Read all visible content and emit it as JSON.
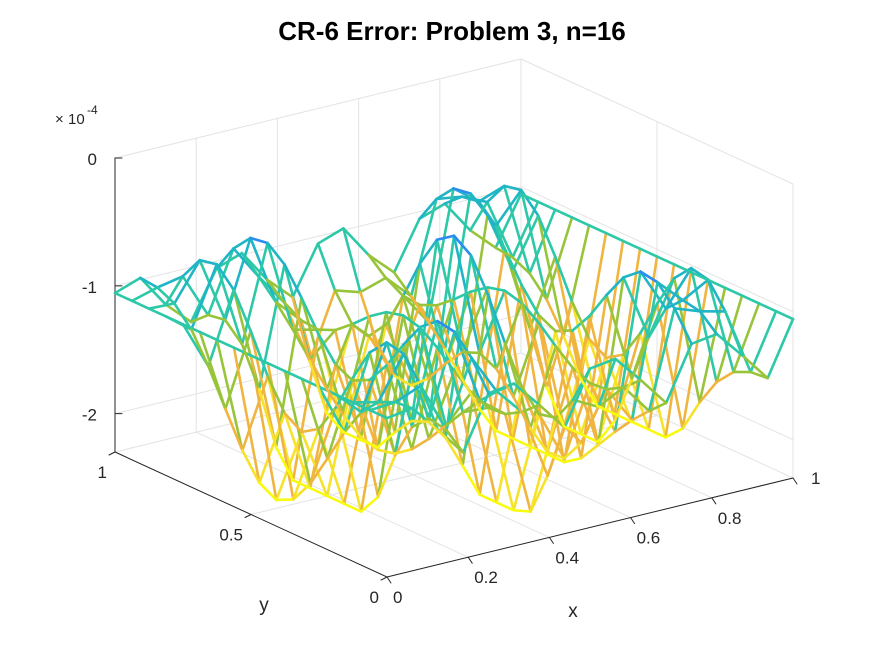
{
  "chart_data": {
    "type": "line",
    "title": "CR-6 Error: Problem 3, n=16",
    "xlabel": "x",
    "ylabel": "y",
    "zlabel": "",
    "z_exponent": {
      "base": "10",
      "power": "-4"
    },
    "x_ticks": [
      "0",
      "0.2",
      "0.4",
      "0.6",
      "0.8",
      "1"
    ],
    "y_ticks": [
      "0",
      "0.5",
      "1"
    ],
    "z_ticks": [
      "0",
      "-1",
      "-2"
    ],
    "xlim": [
      0,
      1
    ],
    "ylim": [
      0,
      1
    ],
    "zlim": [
      -2.3,
      0.0
    ],
    "z_scale": 0.0001,
    "grid": true,
    "colormap": [
      "#3e26a8",
      "#3b58f7",
      "#2c8cf0",
      "#20b5c6",
      "#2cc8a8",
      "#98c43a",
      "#f0b53f",
      "#f7e22a",
      "#f9fb0e"
    ],
    "surface": {
      "n": 16,
      "description_values": "error(x,y) = -1.1e-4 + 0.9e-4*sin(3*pi*x)*sin(3*pi*y) - 1.1e-4*sin(16*pi*x)*|sin(pi*y)| (approximate, in data units x1e-4)",
      "grid_points": 17
    }
  }
}
